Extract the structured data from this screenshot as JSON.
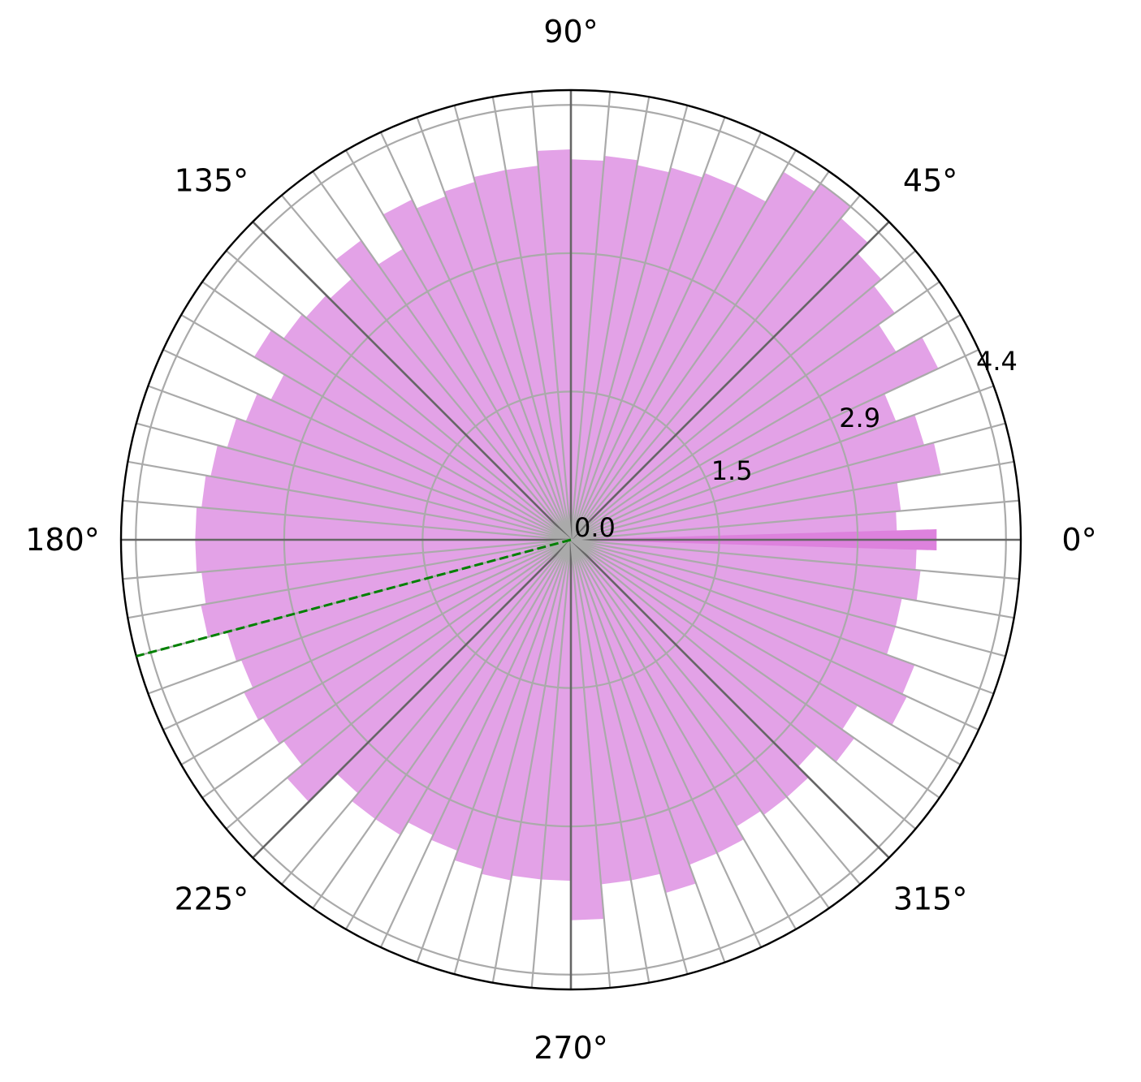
{
  "chart_data": {
    "type": "bar",
    "projection": "polar",
    "angle_unit": "degrees",
    "bin_count": 72,
    "bin_width_deg": 5,
    "bin_start_deg": [
      0,
      5,
      10,
      15,
      20,
      25,
      30,
      35,
      40,
      45,
      50,
      55,
      60,
      65,
      70,
      75,
      80,
      85,
      90,
      95,
      100,
      105,
      110,
      115,
      120,
      125,
      130,
      135,
      140,
      145,
      150,
      155,
      160,
      165,
      170,
      175,
      180,
      185,
      190,
      195,
      200,
      205,
      210,
      215,
      220,
      225,
      230,
      235,
      240,
      245,
      250,
      255,
      260,
      265,
      270,
      275,
      280,
      285,
      290,
      295,
      300,
      305,
      310,
      315,
      320,
      325,
      330,
      335,
      340,
      345,
      350,
      355
    ],
    "values": [
      3.3,
      3.35,
      3.8,
      3.7,
      3.5,
      4.1,
      3.8,
      4.0,
      4.1,
      4.25,
      4.4,
      4.3,
      3.95,
      3.95,
      3.9,
      3.85,
      3.9,
      3.85,
      3.95,
      3.8,
      3.8,
      3.75,
      3.7,
      3.8,
      3.4,
      3.7,
      3.45,
      3.5,
      3.55,
      3.7,
      3.35,
      3.5,
      3.6,
      3.7,
      3.75,
      3.8,
      3.8,
      3.75,
      3.8,
      3.6,
      3.55,
      3.65,
      3.6,
      3.55,
      3.75,
      3.35,
      3.45,
      3.45,
      3.3,
      3.35,
      3.45,
      3.5,
      3.45,
      3.45,
      3.85,
      3.5,
      3.5,
      3.7,
      3.5,
      3.5,
      3.35,
      3.4,
      3.4,
      3.25,
      3.5,
      3.35,
      3.75,
      3.7,
      3.4,
      3.4,
      3.55,
      3.5
    ],
    "highlight": {
      "bin_start_deg": 0,
      "value": 3.7,
      "width_deg": 3.3
    },
    "bar_color": "#e3a2e7",
    "highlight_color": "#dd82dd",
    "reference_line": {
      "angle_deg": 195,
      "color": "#008000",
      "style": "dashed"
    },
    "rmax": 4.55,
    "rticks": [
      0.0,
      1.5,
      2.9,
      4.4
    ],
    "rtick_labels": [
      "0.0",
      "1.5",
      "2.9",
      "4.4"
    ],
    "rtick_label_angle_deg": 22.5,
    "theta_ticks_deg": [
      0,
      45,
      90,
      135,
      180,
      225,
      270,
      315
    ],
    "theta_tick_labels": [
      "0°",
      "45°",
      "90°",
      "135°",
      "180°",
      "225°",
      "270°",
      "315°"
    ],
    "grid": true,
    "spoke_color": "#aaaaaa",
    "major_spoke_color": "#666666",
    "title": "",
    "legend": "none"
  }
}
